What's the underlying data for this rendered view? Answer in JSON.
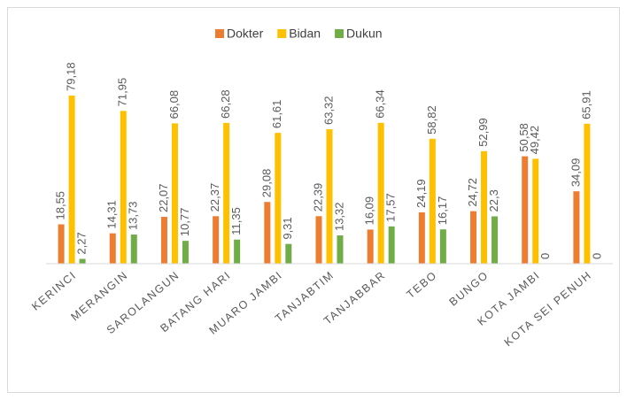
{
  "chart_data": {
    "type": "bar",
    "categories": [
      "KERINCI",
      "MERANGIN",
      "SAROLANGUN",
      "BATANG HARI",
      "MUARO JAMBI",
      "TANJABTIM",
      "TANJABBAR",
      "TEBO",
      "BUNGO",
      "KOTA JAMBI",
      "KOTA SEI PENUH"
    ],
    "series": [
      {
        "name": "Dokter",
        "color": "#ED7D31",
        "values": [
          18.55,
          14.31,
          22.07,
          22.37,
          29.08,
          22.39,
          16.09,
          24.19,
          24.72,
          50.58,
          34.09
        ],
        "value_labels": [
          "18,55",
          "14,31",
          "22,07",
          "22,37",
          "29,08",
          "22,39",
          "16,09",
          "24,19",
          "24,72",
          "50,58",
          "34,09"
        ]
      },
      {
        "name": "Bidan",
        "color": "#FFC000",
        "values": [
          79.18,
          71.95,
          66.08,
          66.28,
          61.61,
          63.32,
          66.34,
          58.82,
          52.99,
          49.42,
          65.91
        ],
        "value_labels": [
          "79,18",
          "71,95",
          "66,08",
          "66,28",
          "61,61",
          "63,32",
          "66,34",
          "58,82",
          "52,99",
          "49,42",
          "65,91"
        ]
      },
      {
        "name": "Dukun",
        "color": "#70AD47",
        "values": [
          2.27,
          13.73,
          10.77,
          11.35,
          9.31,
          13.32,
          17.57,
          16.17,
          22.3,
          0,
          0
        ],
        "value_labels": [
          "2,27",
          "13,73",
          "10,77",
          "11,35",
          "9,31",
          "13,32",
          "17,57",
          "16,17",
          "22,3",
          "0",
          "0"
        ]
      }
    ],
    "ylim": [
      0,
      80
    ],
    "legend": "top"
  }
}
